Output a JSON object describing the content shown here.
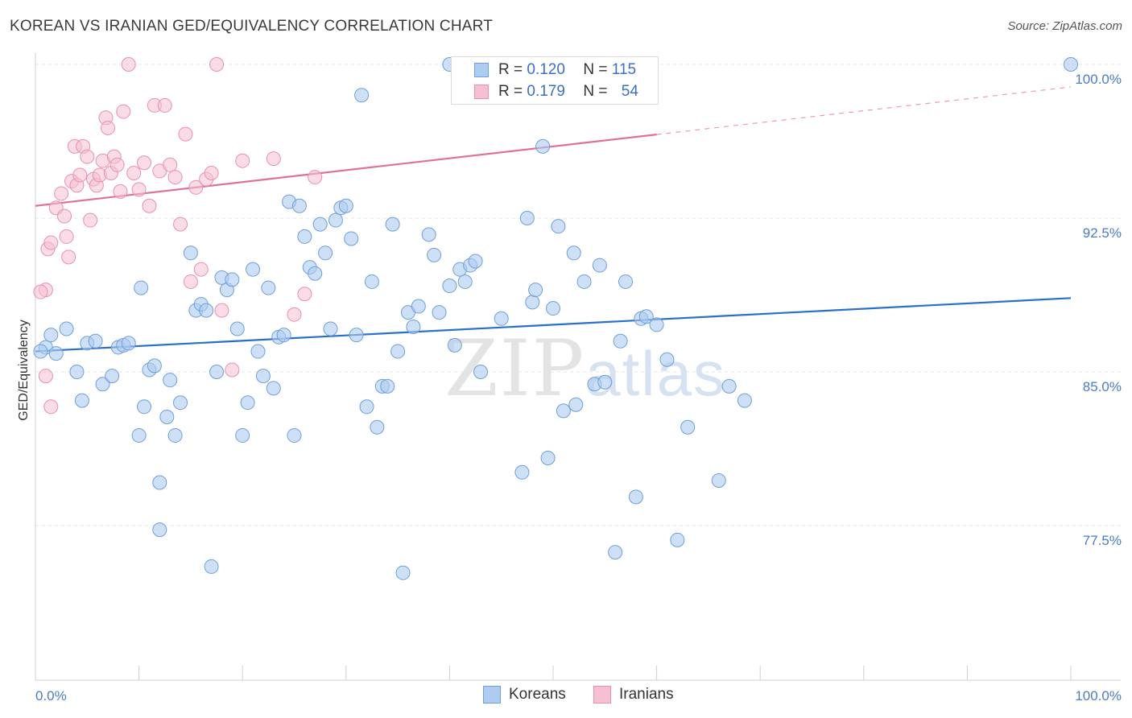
{
  "title": "KOREAN VS IRANIAN GED/EQUIVALENCY CORRELATION CHART",
  "source": "Source: ZipAtlas.com",
  "watermark": {
    "zip": "ZIP",
    "atlas": "atlas"
  },
  "legend": {
    "r_label": "R =",
    "n_label": "N =",
    "rows": [
      {
        "r": "0.120",
        "n": "115"
      },
      {
        "r": "0.179",
        "n": "54"
      }
    ]
  },
  "bottom_legend": [
    "Koreans",
    "Iranians"
  ],
  "colors": {
    "korean_fill": "#aecbf0",
    "korean_stroke": "#6f9fdc",
    "korean_line": "#2a6fcb",
    "iranian_fill": "#f6bfd2",
    "iranian_stroke": "#e890b0",
    "iranian_line": "#e0709a"
  },
  "chart_data": {
    "type": "scatter",
    "title": "KOREAN VS IRANIAN GED/EQUIVALENCY CORRELATION CHART",
    "xlabel": "",
    "ylabel": "GED/Equivalency",
    "xlim": [
      0,
      100
    ],
    "ylim": [
      70,
      100.5
    ],
    "x_tick_labels": [
      "0.0%",
      "100.0%"
    ],
    "y_ticks": [
      77.5,
      85.0,
      92.5,
      100.0
    ],
    "y_tick_labels": [
      "77.5%",
      "85.0%",
      "92.5%",
      "100.0%"
    ],
    "grid": true,
    "legend_position": "top-center",
    "series": [
      {
        "name": "Koreans",
        "R": 0.12,
        "N": 115,
        "trend": {
          "x": [
            0,
            100
          ],
          "y": [
            86.0,
            88.6
          ],
          "dashed_from": null
        },
        "points": [
          [
            1,
            86.2
          ],
          [
            1.5,
            86.8
          ],
          [
            2,
            85.9
          ],
          [
            3,
            87.1
          ],
          [
            4,
            85
          ],
          [
            4.5,
            83.6
          ],
          [
            5,
            86.4
          ],
          [
            5.8,
            86.5
          ],
          [
            6.5,
            84.4
          ],
          [
            7.4,
            84.8
          ],
          [
            8,
            86.2
          ],
          [
            8.5,
            86.3
          ],
          [
            9,
            86.4
          ],
          [
            10,
            81.9
          ],
          [
            10.2,
            89.1
          ],
          [
            10.5,
            83.3
          ],
          [
            11,
            85.1
          ],
          [
            11.5,
            85.3
          ],
          [
            12,
            79.6
          ],
          [
            12,
            77.3
          ],
          [
            12.7,
            82.8
          ],
          [
            13,
            84.6
          ],
          [
            13.5,
            81.9
          ],
          [
            14,
            83.5
          ],
          [
            15,
            90.8
          ],
          [
            15.5,
            88
          ],
          [
            16,
            88.3
          ],
          [
            16.5,
            88
          ],
          [
            17,
            75.5
          ],
          [
            17.5,
            85
          ],
          [
            18,
            89.6
          ],
          [
            18.5,
            89
          ],
          [
            19,
            89.5
          ],
          [
            19.5,
            87.1
          ],
          [
            20,
            81.9
          ],
          [
            20.5,
            83.5
          ],
          [
            21,
            90
          ],
          [
            21.5,
            86
          ],
          [
            22,
            84.8
          ],
          [
            22.5,
            89.1
          ],
          [
            23,
            84.2
          ],
          [
            23.5,
            86.7
          ],
          [
            24,
            86.8
          ],
          [
            24.5,
            93.3
          ],
          [
            25,
            81.9
          ],
          [
            25.5,
            93.1
          ],
          [
            26,
            91.6
          ],
          [
            26.5,
            90.1
          ],
          [
            27,
            89.8
          ],
          [
            27.5,
            92.2
          ],
          [
            28,
            90.8
          ],
          [
            28.5,
            87.1
          ],
          [
            29,
            92.4
          ],
          [
            29.5,
            93
          ],
          [
            30,
            93.1
          ],
          [
            30.5,
            91.5
          ],
          [
            31,
            86.8
          ],
          [
            31.5,
            98.5
          ],
          [
            32,
            83.3
          ],
          [
            32.5,
            89.4
          ],
          [
            33,
            82.3
          ],
          [
            33.5,
            84.3
          ],
          [
            34,
            84.3
          ],
          [
            34.5,
            92.2
          ],
          [
            35,
            86
          ],
          [
            35.5,
            75.2
          ],
          [
            36,
            87.9
          ],
          [
            36.5,
            87.2
          ],
          [
            37,
            88.2
          ],
          [
            38,
            91.7
          ],
          [
            38.5,
            90.7
          ],
          [
            39,
            87.9
          ],
          [
            40,
            89.2
          ],
          [
            40.5,
            86.3
          ],
          [
            41,
            90
          ],
          [
            41.5,
            89.4
          ],
          [
            42,
            90.2
          ],
          [
            42.5,
            90.4
          ],
          [
            43,
            85
          ],
          [
            45,
            87.6
          ],
          [
            47,
            80.1
          ],
          [
            47.5,
            92.5
          ],
          [
            48,
            88.4
          ],
          [
            48.3,
            89
          ],
          [
            49,
            96
          ],
          [
            49.5,
            80.8
          ],
          [
            50,
            88.1
          ],
          [
            50.5,
            92.1
          ],
          [
            51,
            83.1
          ],
          [
            52,
            90.8
          ],
          [
            52.2,
            83.4
          ],
          [
            53,
            89.4
          ],
          [
            54,
            84.4
          ],
          [
            54.5,
            90.2
          ],
          [
            55,
            84.5
          ],
          [
            56,
            76.2
          ],
          [
            56.5,
            86.5
          ],
          [
            57,
            89.4
          ],
          [
            58,
            78.9
          ],
          [
            58.5,
            87.6
          ],
          [
            59,
            87.7
          ],
          [
            60,
            87.3
          ],
          [
            61,
            85.6
          ],
          [
            62,
            76.8
          ],
          [
            63,
            82.3
          ],
          [
            66,
            79.7
          ],
          [
            67,
            84.3
          ],
          [
            68.5,
            83.6
          ],
          [
            100,
            100
          ],
          [
            40,
            100
          ],
          [
            0.5,
            86
          ]
        ]
      },
      {
        "name": "Iranians",
        "R": 0.179,
        "N": 54,
        "trend": {
          "x": [
            0,
            100
          ],
          "y": [
            93.1,
            98.9
          ],
          "dashed_from": 60
        },
        "points": [
          [
            1,
            89
          ],
          [
            1.2,
            91
          ],
          [
            1.5,
            91.3
          ],
          [
            2,
            93
          ],
          [
            2.5,
            93.7
          ],
          [
            2.8,
            92.6
          ],
          [
            3,
            91.6
          ],
          [
            3.2,
            90.6
          ],
          [
            3.5,
            94.3
          ],
          [
            3.8,
            96
          ],
          [
            4,
            94.1
          ],
          [
            4.3,
            94.6
          ],
          [
            4.6,
            96
          ],
          [
            5,
            95.5
          ],
          [
            5.3,
            92.4
          ],
          [
            5.6,
            94.4
          ],
          [
            5.9,
            94.1
          ],
          [
            6.2,
            94.6
          ],
          [
            6.5,
            95.3
          ],
          [
            6.8,
            97.4
          ],
          [
            7,
            96.9
          ],
          [
            7.3,
            94.7
          ],
          [
            7.6,
            95.5
          ],
          [
            7.9,
            95.1
          ],
          [
            8.2,
            93.8
          ],
          [
            8.5,
            97.7
          ],
          [
            9,
            100
          ],
          [
            9.5,
            94.7
          ],
          [
            10,
            93.9
          ],
          [
            10.5,
            95.2
          ],
          [
            11,
            93.1
          ],
          [
            11.5,
            98
          ],
          [
            12,
            94.8
          ],
          [
            12.5,
            98
          ],
          [
            13,
            95.1
          ],
          [
            13.5,
            94.5
          ],
          [
            14,
            92.2
          ],
          [
            14.5,
            96.6
          ],
          [
            15,
            89.4
          ],
          [
            15.5,
            94
          ],
          [
            16,
            90
          ],
          [
            16.5,
            94.4
          ],
          [
            17,
            94.7
          ],
          [
            17.5,
            100
          ],
          [
            18,
            88
          ],
          [
            19,
            85.1
          ],
          [
            20,
            95.3
          ],
          [
            23,
            95.4
          ],
          [
            25,
            87.8
          ],
          [
            26,
            88.8
          ],
          [
            27,
            94.5
          ],
          [
            0.5,
            88.9
          ],
          [
            1,
            84.8
          ],
          [
            1.5,
            83.3
          ]
        ]
      }
    ]
  }
}
